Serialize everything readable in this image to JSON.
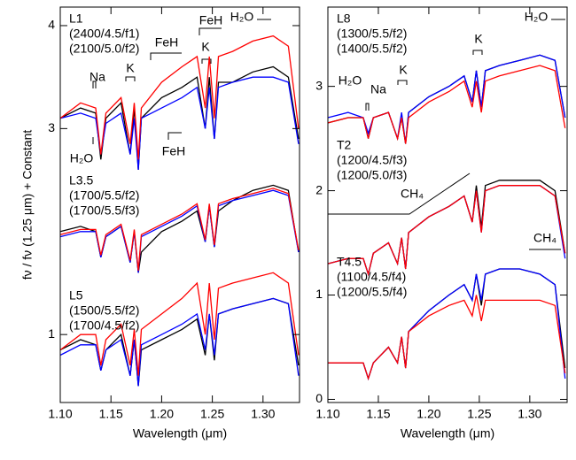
{
  "chart_data": [
    {
      "type": "line",
      "ylabel": "fν / fν (1.25 μm) + Constant",
      "xlabel": "Wavelength (μm)",
      "xlim": [
        1.1,
        1.336
      ],
      "ylim": [
        0.34,
        4.18
      ],
      "xticks": [
        {
          "value": 1.1,
          "label": "1.10"
        },
        1.15,
        {
          "value": 1.2,
          "label": "1.20"
        },
        1.25,
        {
          "value": 1.3,
          "label": "1.30"
        }
      ],
      "yticks": [
        1,
        3,
        4
      ],
      "labels": [
        "L1",
        "L3.5",
        "L5"
      ],
      "annotations": [
        "Na",
        "K",
        "FeH",
        "FeH",
        "K",
        "H₂O",
        "H₂O",
        "FeH"
      ],
      "x": [
        1.1,
        1.12,
        1.135,
        1.14,
        1.145,
        1.16,
        1.169,
        1.173,
        1.177,
        1.18,
        1.2,
        1.22,
        1.235,
        1.243,
        1.247,
        1.252,
        1.256,
        1.27,
        1.29,
        1.31,
        1.325,
        1.335
      ],
      "series": [
        {
          "color": "#000000",
          "values": [
            3.1,
            3.2,
            3.15,
            2.7,
            3.1,
            3.25,
            2.75,
            3.2,
            2.6,
            3.1,
            3.3,
            3.4,
            3.5,
            3.0,
            3.5,
            2.9,
            3.45,
            3.45,
            3.55,
            3.6,
            3.5,
            2.9
          ]
        },
        {
          "name": "(2400/4.5/f1)",
          "color": "#0000ff",
          "values": [
            3.1,
            3.15,
            3.1,
            2.75,
            3.05,
            3.15,
            2.75,
            3.1,
            2.6,
            3.1,
            3.2,
            3.3,
            3.4,
            3.0,
            3.4,
            2.9,
            3.4,
            3.45,
            3.5,
            3.5,
            3.45,
            2.85
          ]
        },
        {
          "name": "(2100/5.0/f2)",
          "color": "#ff0000",
          "values": [
            3.1,
            3.25,
            3.2,
            2.75,
            3.15,
            3.3,
            2.85,
            3.25,
            2.7,
            3.2,
            3.45,
            3.6,
            3.7,
            3.2,
            3.7,
            3.1,
            3.7,
            3.75,
            3.85,
            3.9,
            3.8,
            3.0
          ]
        },
        {
          "color": "#000000",
          "values": [
            2.0,
            2.05,
            2.0,
            1.75,
            1.95,
            2.05,
            1.7,
            2.0,
            1.6,
            1.8,
            2.0,
            2.1,
            2.2,
            1.9,
            2.25,
            1.85,
            2.2,
            2.3,
            2.4,
            2.45,
            2.4,
            1.8
          ]
        },
        {
          "name": "(1700/5.5/f2)",
          "color": "#0000ff",
          "values": [
            1.95,
            2.0,
            2.0,
            1.75,
            1.95,
            2.05,
            1.7,
            2.0,
            1.6,
            1.95,
            2.05,
            2.15,
            2.25,
            1.9,
            2.25,
            1.85,
            2.25,
            2.3,
            2.35,
            2.4,
            2.35,
            1.8
          ]
        },
        {
          "name": "(1700/5.5/f3)",
          "color": "#ff0000",
          "values": [
            1.97,
            2.02,
            2.02,
            1.77,
            1.97,
            2.07,
            1.72,
            2.02,
            1.62,
            1.97,
            2.07,
            2.17,
            2.27,
            1.92,
            2.27,
            1.87,
            2.27,
            2.32,
            2.37,
            2.42,
            2.37,
            1.82
          ]
        },
        {
          "color": "#000000",
          "values": [
            0.85,
            0.95,
            0.9,
            0.65,
            0.85,
            1.0,
            0.6,
            0.95,
            0.5,
            0.85,
            0.95,
            1.05,
            1.15,
            0.8,
            1.2,
            0.75,
            1.2,
            1.25,
            1.3,
            1.35,
            1.3,
            0.7
          ]
        },
        {
          "name": "(1500/5.5/f2)",
          "color": "#0000ff",
          "values": [
            0.8,
            0.9,
            0.9,
            0.65,
            0.85,
            0.95,
            0.6,
            0.95,
            0.5,
            0.9,
            1.0,
            1.1,
            1.2,
            0.85,
            1.2,
            0.8,
            1.2,
            1.25,
            1.3,
            1.35,
            1.3,
            0.6
          ]
        },
        {
          "name": "(1700/4.5/f2)",
          "color": "#ff0000",
          "values": [
            0.85,
            1.0,
            1.0,
            0.7,
            0.95,
            1.1,
            0.7,
            1.05,
            0.6,
            1.05,
            1.2,
            1.35,
            1.5,
            1.0,
            1.5,
            0.95,
            1.45,
            1.5,
            1.55,
            1.6,
            1.5,
            0.8
          ]
        }
      ]
    },
    {
      "type": "line",
      "xlabel": "Wavelength (μm)",
      "xlim": [
        1.1,
        1.337
      ],
      "ylim": [
        -0.03,
        3.76
      ],
      "xticks": [
        {
          "value": 1.1,
          "label": "1.10"
        },
        1.15,
        {
          "value": 1.2,
          "label": "1.20"
        },
        1.25,
        {
          "value": 1.3,
          "label": "1.30"
        }
      ],
      "yticks": [
        0,
        1,
        2,
        3
      ],
      "labels": [
        "L8",
        "T2",
        "T4.5"
      ],
      "annotations": [
        "H₂O",
        "K",
        "H₂O",
        "Na",
        "K",
        "CH₄",
        "CH₄"
      ],
      "x": [
        1.1,
        1.12,
        1.135,
        1.14,
        1.145,
        1.16,
        1.169,
        1.173,
        1.177,
        1.18,
        1.2,
        1.22,
        1.235,
        1.243,
        1.247,
        1.252,
        1.256,
        1.27,
        1.29,
        1.31,
        1.325,
        1.335
      ],
      "series": [
        {
          "color": "#000000",
          "values": [
            2.65,
            2.7,
            2.7,
            2.5,
            2.7,
            2.75,
            2.5,
            2.7,
            2.45,
            2.75,
            2.9,
            3.0,
            3.1,
            2.85,
            3.15,
            2.8,
            3.15,
            3.2,
            3.25,
            3.3,
            3.25,
            2.7
          ]
        },
        {
          "name": "(1300/5.5/f2)",
          "color": "#0000ff",
          "values": [
            2.7,
            2.75,
            2.7,
            2.55,
            2.7,
            2.75,
            2.5,
            2.75,
            2.45,
            2.75,
            2.9,
            3.0,
            3.1,
            2.85,
            3.15,
            2.8,
            3.15,
            3.2,
            3.25,
            3.3,
            3.25,
            2.7
          ]
        },
        {
          "name": "(1400/5.5/f2)",
          "color": "#ff0000",
          "values": [
            2.65,
            2.7,
            2.7,
            2.5,
            2.7,
            2.75,
            2.5,
            2.7,
            2.45,
            2.7,
            2.85,
            2.95,
            3.05,
            2.8,
            3.05,
            2.75,
            3.05,
            3.1,
            3.15,
            3.2,
            3.15,
            2.6
          ]
        },
        {
          "color": "#000000",
          "values": [
            1.3,
            1.35,
            1.35,
            1.2,
            1.4,
            1.5,
            1.3,
            1.55,
            1.25,
            1.6,
            1.75,
            1.85,
            1.95,
            1.7,
            2.05,
            1.65,
            2.05,
            2.1,
            2.1,
            2.1,
            2.0,
            1.4
          ]
        },
        {
          "name": "(1200/4.5/f3)",
          "color": "#0000ff",
          "values": [
            1.3,
            1.35,
            1.35,
            1.2,
            1.4,
            1.5,
            1.3,
            1.55,
            1.25,
            1.6,
            1.75,
            1.85,
            1.95,
            1.7,
            2.0,
            1.6,
            2.0,
            2.05,
            2.05,
            2.05,
            1.95,
            1.35
          ]
        },
        {
          "name": "(1200/5.0/f3)",
          "color": "#ff0000",
          "values": [
            1.3,
            1.35,
            1.35,
            1.2,
            1.4,
            1.5,
            1.3,
            1.55,
            1.25,
            1.6,
            1.75,
            1.85,
            1.95,
            1.7,
            2.0,
            1.6,
            2.0,
            2.05,
            2.05,
            2.05,
            1.95,
            1.4
          ]
        },
        {
          "color": "#000000",
          "values": [
            0.35,
            0.35,
            0.35,
            0.2,
            0.35,
            0.5,
            0.35,
            0.6,
            0.3,
            0.65,
            0.85,
            1.0,
            1.1,
            0.95,
            1.2,
            0.9,
            1.2,
            1.25,
            1.25,
            1.2,
            1.1,
            0.3
          ]
        },
        {
          "name": "(1100/4.5/f4)",
          "color": "#0000ff",
          "values": [
            0.35,
            0.35,
            0.35,
            0.2,
            0.35,
            0.5,
            0.35,
            0.6,
            0.3,
            0.65,
            0.85,
            1.0,
            1.1,
            0.95,
            1.2,
            0.95,
            1.2,
            1.25,
            1.25,
            1.2,
            1.1,
            0.2
          ]
        },
        {
          "name": "(1200/5.5/f4)",
          "color": "#ff0000",
          "values": [
            0.35,
            0.35,
            0.35,
            0.2,
            0.35,
            0.5,
            0.35,
            0.6,
            0.3,
            0.65,
            0.8,
            0.9,
            0.95,
            0.8,
            1.0,
            0.75,
            0.95,
            0.95,
            0.95,
            0.95,
            0.9,
            0.25
          ]
        }
      ]
    }
  ]
}
